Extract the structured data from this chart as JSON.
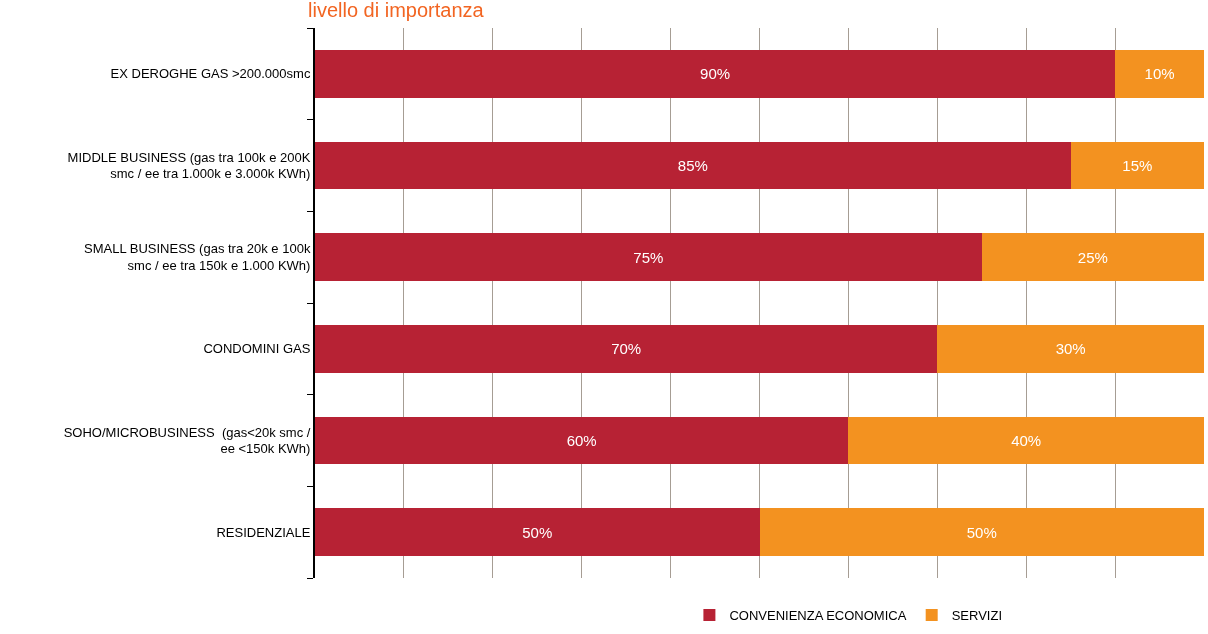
{
  "chart_data": {
    "type": "bar",
    "orientation": "horizontal",
    "stacked": true,
    "title": "livello di importanza",
    "categories": [
      "EX DEROGHE GAS >200.000smc",
      "MIDDLE BUSINESS (gas tra 100k e 200K smc / ee tra 1.000k e 3.000k KWh)",
      "SMALL BUSINESS (gas tra 20k e 100k smc / ee tra 150k e 1.000 KWh)",
      "CONDOMINI GAS",
      "SOHO/MICROBUSINESS  (gas<20k smc / ee <150k KWh)",
      "RESIDENZIALE"
    ],
    "series": [
      {
        "name": "CONVENIENZA ECONOMICA",
        "color": "#b72234",
        "values": [
          90,
          85,
          75,
          70,
          60,
          50
        ],
        "value_labels": [
          "90%",
          "85%",
          "75%",
          "70%",
          "60%",
          "50%"
        ]
      },
      {
        "name": "SERVIZI",
        "color": "#f39220",
        "values": [
          10,
          15,
          25,
          30,
          40,
          50
        ],
        "value_labels": [
          "10%",
          "15%",
          "25%",
          "30%",
          "40%",
          "50%"
        ]
      }
    ],
    "xlim": [
      0,
      100
    ],
    "xticks": [
      {
        "value": 10,
        "label": null
      },
      {
        "value": 20,
        "label": null
      },
      {
        "value": 30,
        "label": null
      },
      {
        "value": 40,
        "label": null
      },
      {
        "value": 50,
        "label": null
      },
      {
        "value": 60,
        "label": null
      },
      {
        "value": 70,
        "label": null
      },
      {
        "value": 80,
        "label": null
      },
      {
        "value": 90,
        "label": null
      }
    ],
    "grid": "x",
    "legend": "bottom",
    "tick_labels": "y"
  }
}
